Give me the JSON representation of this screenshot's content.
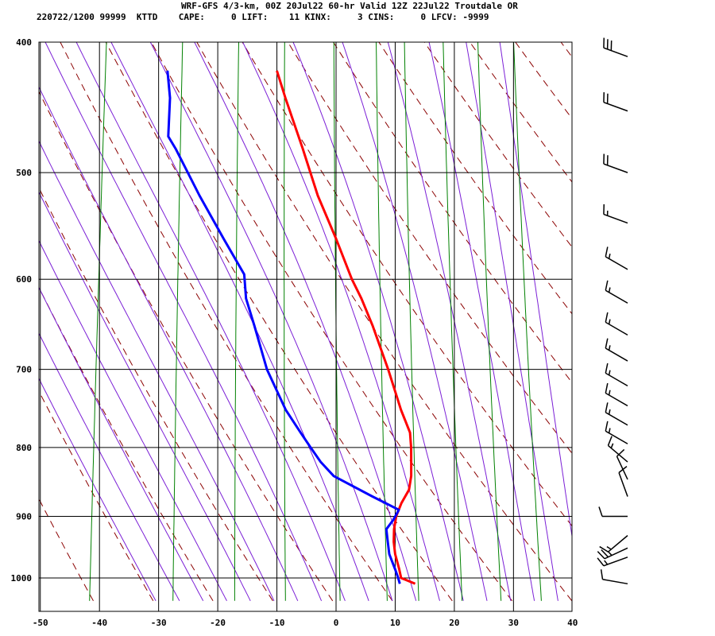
{
  "header": {
    "title": "WRF-GFS 4/3-km, 00Z 20Jul22 60-hr Valid 12Z 22Jul22 Troutdale OR",
    "stats_line": "220722/1200 99999  KTTD    CAPE:     0 LIFT:    11 KINX:     3 CINS:     0 LFCV: -9999"
  },
  "chart_data": {
    "type": "line",
    "subtype": "skew-t log-p sounding",
    "title": "WRF-GFS 4/3-km, 00Z 20Jul22 60-hr Valid 12Z 22Jul22 Troutdale OR",
    "xlabel": "",
    "ylabel": "",
    "x_ticks": [
      -50,
      -40,
      -30,
      -20,
      -10,
      0,
      10,
      20,
      30,
      40
    ],
    "y_ticks": [
      400,
      500,
      600,
      700,
      800,
      900,
      1000
    ],
    "xlim": [
      -50,
      40
    ],
    "ylim_pressure": [
      1040,
      400
    ],
    "y_scale": "log",
    "grid": true,
    "colors": {
      "temperature": "#ff0000",
      "dewpoint": "#0000ff",
      "dry_adiabat": "#8b0000",
      "moist_adiabat": "#7b1fd6",
      "mixing_ratio": "#008000",
      "grid": "#000000"
    },
    "series": [
      {
        "key": "temperature",
        "points": [
          [
            1010,
            13.5
          ],
          [
            1000,
            11
          ],
          [
            985,
            10.5
          ],
          [
            960,
            9.5
          ],
          [
            940,
            9
          ],
          [
            920,
            8.8
          ],
          [
            900,
            8.9
          ],
          [
            880,
            9.5
          ],
          [
            860,
            10.5
          ],
          [
            840,
            10.6
          ],
          [
            820,
            10.3
          ],
          [
            800,
            10
          ],
          [
            780,
            9.5
          ],
          [
            750,
            7.5
          ],
          [
            700,
            4.5
          ],
          [
            650,
            1
          ],
          [
            620,
            -1.5
          ],
          [
            600,
            -3.5
          ],
          [
            560,
            -7
          ],
          [
            520,
            -11
          ],
          [
            480,
            -14.5
          ],
          [
            440,
            -18.5
          ],
          [
            420,
            -20.5
          ]
        ]
      },
      {
        "key": "dewpoint",
        "points": [
          [
            1010,
            10.9
          ],
          [
            1000,
            10.5
          ],
          [
            985,
            9.8
          ],
          [
            960,
            8.5
          ],
          [
            940,
            8
          ],
          [
            920,
            7.5
          ],
          [
            905,
            8.5
          ],
          [
            890,
            9.2
          ],
          [
            870,
            4.5
          ],
          [
            840,
            -2.5
          ],
          [
            820,
            -5
          ],
          [
            800,
            -7
          ],
          [
            780,
            -9
          ],
          [
            750,
            -12
          ],
          [
            700,
            -16
          ],
          [
            650,
            -19
          ],
          [
            620,
            -21
          ],
          [
            595,
            -21.8
          ],
          [
            560,
            -26
          ],
          [
            520,
            -31
          ],
          [
            480,
            -36
          ],
          [
            470,
            -37.5
          ],
          [
            440,
            -38
          ],
          [
            420,
            -39
          ]
        ]
      }
    ],
    "wind_barbs": [
      {
        "p": 1010,
        "dir": 280,
        "kt": 10
      },
      {
        "p": 965,
        "dir": 250,
        "kt": 15
      },
      {
        "p": 950,
        "dir": 245,
        "kt": 25
      },
      {
        "p": 930,
        "dir": 230,
        "kt": 15
      },
      {
        "p": 900,
        "dir": 270,
        "kt": 10
      },
      {
        "p": 870,
        "dir": 340,
        "kt": 10
      },
      {
        "p": 845,
        "dir": 335,
        "kt": 10
      },
      {
        "p": 820,
        "dir": 310,
        "kt": 15
      },
      {
        "p": 795,
        "dir": 300,
        "kt": 15
      },
      {
        "p": 770,
        "dir": 300,
        "kt": 15
      },
      {
        "p": 745,
        "dir": 300,
        "kt": 15
      },
      {
        "p": 720,
        "dir": 300,
        "kt": 15
      },
      {
        "p": 690,
        "dir": 300,
        "kt": 15
      },
      {
        "p": 660,
        "dir": 300,
        "kt": 15
      },
      {
        "p": 625,
        "dir": 300,
        "kt": 15
      },
      {
        "p": 590,
        "dir": 300,
        "kt": 15
      },
      {
        "p": 545,
        "dir": 290,
        "kt": 15
      },
      {
        "p": 500,
        "dir": 290,
        "kt": 20
      },
      {
        "p": 450,
        "dir": 290,
        "kt": 20
      },
      {
        "p": 410,
        "dir": 290,
        "kt": 30
      }
    ]
  }
}
